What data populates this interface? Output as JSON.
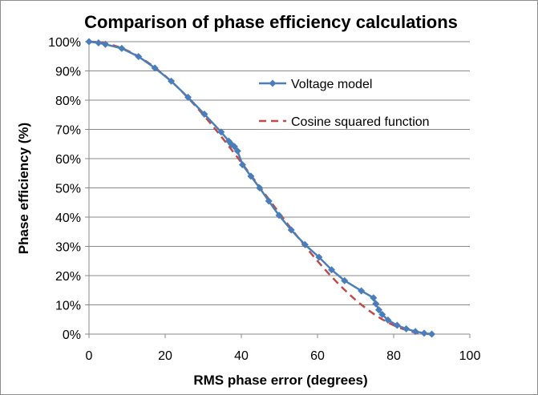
{
  "chart_data": {
    "type": "line",
    "title": "Comparison of phase efficiency calculations",
    "xlabel": "RMS phase error (degrees)",
    "ylabel": "Phase efficiency (%)",
    "xlim": [
      0,
      100
    ],
    "ylim": [
      0,
      100
    ],
    "x_ticks": [
      0,
      20,
      40,
      60,
      80,
      100
    ],
    "y_ticks": [
      0,
      10,
      20,
      30,
      40,
      50,
      60,
      70,
      80,
      90,
      100
    ],
    "x_tick_labels": [
      "0",
      "20",
      "40",
      "60",
      "80",
      "100"
    ],
    "y_tick_labels": [
      "0%",
      "10%",
      "20%",
      "30%",
      "40%",
      "50%",
      "60%",
      "70%",
      "80%",
      "90%",
      "100%"
    ],
    "grid": "horizontal",
    "legend_position": "upper-right inside plot",
    "series": [
      {
        "name": "Voltage model",
        "style": "solid line with diamond markers",
        "color": "#4a7ebb",
        "points": [
          [
            0,
            100
          ],
          [
            2.5,
            99.6
          ],
          [
            4.3,
            99.1
          ],
          [
            8.6,
            97.7
          ],
          [
            13,
            94.9
          ],
          [
            17.3,
            91.0
          ],
          [
            21.6,
            86.5
          ],
          [
            26,
            81.0
          ],
          [
            30.3,
            75.2
          ],
          [
            34.7,
            69.1
          ],
          [
            36.7,
            66.0
          ],
          [
            37.4,
            64.9
          ],
          [
            38.2,
            64.1
          ],
          [
            39,
            62.6
          ],
          [
            40.3,
            57.9
          ],
          [
            42.5,
            54.0
          ],
          [
            44.8,
            50.0
          ],
          [
            47.2,
            45.5
          ],
          [
            49.9,
            40.6
          ],
          [
            53.1,
            35.6
          ],
          [
            56.7,
            30.6
          ],
          [
            60.4,
            26.3
          ],
          [
            63.7,
            22.0
          ],
          [
            67.1,
            18.3
          ],
          [
            71.5,
            14.8
          ],
          [
            74.7,
            12.4
          ],
          [
            75.3,
            10.4
          ],
          [
            76.1,
            8.3
          ],
          [
            77,
            6.7
          ],
          [
            78.5,
            4.8
          ],
          [
            80.9,
            3.0
          ],
          [
            83.3,
            1.8
          ],
          [
            85.7,
            0.9
          ],
          [
            88,
            0.3
          ],
          [
            90,
            0
          ]
        ]
      },
      {
        "name": "Cosine squared function",
        "style": "dashed line",
        "color": "#be4b48",
        "function": "cos^2(x degrees) * 100"
      }
    ]
  }
}
